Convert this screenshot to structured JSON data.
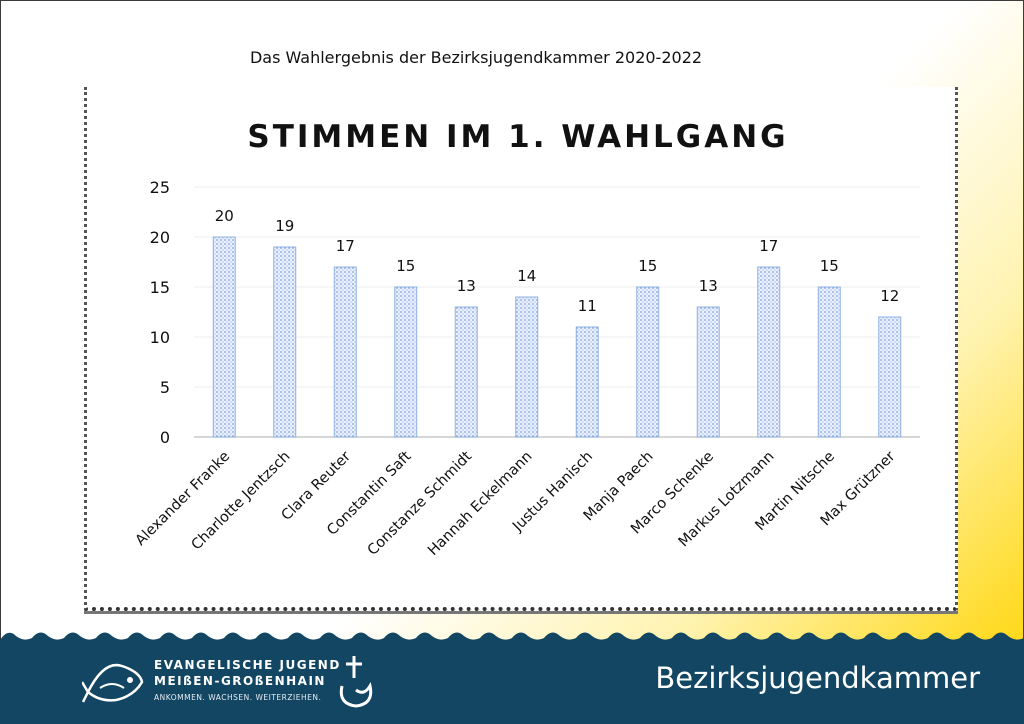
{
  "header": {
    "title": "Das Wahlergebnis der Bezirksjugendkammer 2020-2022"
  },
  "chart_data": {
    "type": "bar",
    "title": "STIMMEN IM 1. WAHLGANG",
    "xlabel": "",
    "ylabel": "",
    "ylim": [
      0,
      25
    ],
    "yticks": [
      "0",
      "5",
      "10",
      "15",
      "20",
      "25"
    ],
    "grid": "horizontal",
    "legend": "none",
    "bar_color": "#8fb1e3",
    "categories": [
      "Alexander Franke",
      "Charlotte Jentzsch",
      "Clara Reuter",
      "Constantin Saft",
      "Constanze Schmidt",
      "Hannah Eckelmann",
      "Justus Hanisch",
      "Manja Paech",
      "Marco Schenke",
      "Markus Lotzmann",
      "Martin Nitsche",
      "Max Grützner"
    ],
    "values": [
      20,
      19,
      17,
      15,
      13,
      14,
      11,
      15,
      13,
      17,
      15,
      12
    ],
    "data_labels": [
      "20",
      "19",
      "17",
      "15",
      "13",
      "14",
      "11",
      "15",
      "13",
      "17",
      "15",
      "12"
    ]
  },
  "footer": {
    "title": "Bezirksjugendkammer",
    "band_color": "#124663",
    "logo": {
      "line1": "EVANGELISCHE JUGEND",
      "line2": "MEIßEN-GROßENHAIN",
      "line3": "ANKOMMEN. WACHSEN. WEITERZIEHEN."
    }
  }
}
